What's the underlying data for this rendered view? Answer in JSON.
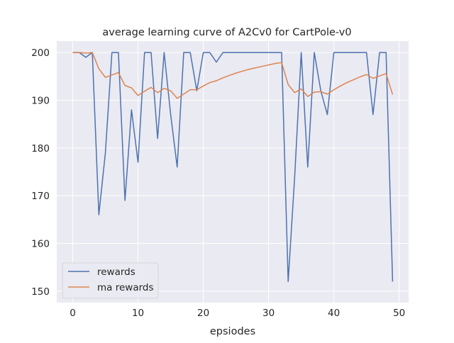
{
  "chart_data": {
    "type": "line",
    "title": "average learning curve of A2Cv0 for CartPole-v0",
    "xlabel": "epsiodes",
    "ylabel": "",
    "xlim": [
      -2.45,
      51.45
    ],
    "ylim": [
      147.6,
      202.4
    ],
    "xticks": [
      0,
      10,
      20,
      30,
      40,
      50
    ],
    "yticks": [
      150,
      160,
      170,
      180,
      190,
      200
    ],
    "grid": true,
    "legend_position": "lower-left",
    "colors": {
      "background": "#eaeaf2",
      "grid": "#ffffff",
      "rewards": "#4c72b0",
      "ma_rewards": "#dd8452"
    },
    "x": [
      0,
      1,
      2,
      3,
      4,
      5,
      6,
      7,
      8,
      9,
      10,
      11,
      12,
      13,
      14,
      15,
      16,
      17,
      18,
      19,
      20,
      21,
      22,
      23,
      24,
      25,
      26,
      27,
      28,
      29,
      30,
      31,
      32,
      33,
      34,
      35,
      36,
      37,
      38,
      39,
      40,
      41,
      42,
      43,
      44,
      45,
      46,
      47,
      48,
      49
    ],
    "series": [
      {
        "name": "rewards",
        "color": "#4c72b0",
        "values": [
          200,
          200,
          199,
          200,
          166,
          179,
          200,
          200,
          169,
          188,
          177,
          200,
          200,
          182,
          200,
          187,
          176,
          200,
          200,
          192,
          200,
          200,
          198,
          200,
          200,
          200,
          200,
          200,
          200,
          200,
          200,
          200,
          200,
          152,
          174,
          200,
          176,
          200,
          192,
          187,
          200,
          200,
          200,
          200,
          200,
          200,
          187,
          200,
          200,
          152
        ]
      },
      {
        "name": "ma rewards",
        "color": "#dd8452",
        "values": [
          200,
          200,
          199.9,
          200,
          196.6,
          194.8,
          195.3,
          195.8,
          193.1,
          192.6,
          191.0,
          191.9,
          192.7,
          191.6,
          192.5,
          192.0,
          190.4,
          191.3,
          192.2,
          192.2,
          193.0,
          193.7,
          194.1,
          194.7,
          195.2,
          195.7,
          196.1,
          196.5,
          196.8,
          197.1,
          197.4,
          197.7,
          197.9,
          193.3,
          191.6,
          192.4,
          190.8,
          191.7,
          191.8,
          191.3,
          192.2,
          193.0,
          193.7,
          194.3,
          194.9,
          195.4,
          194.6,
          195.1,
          195.6,
          191.2
        ]
      }
    ]
  }
}
